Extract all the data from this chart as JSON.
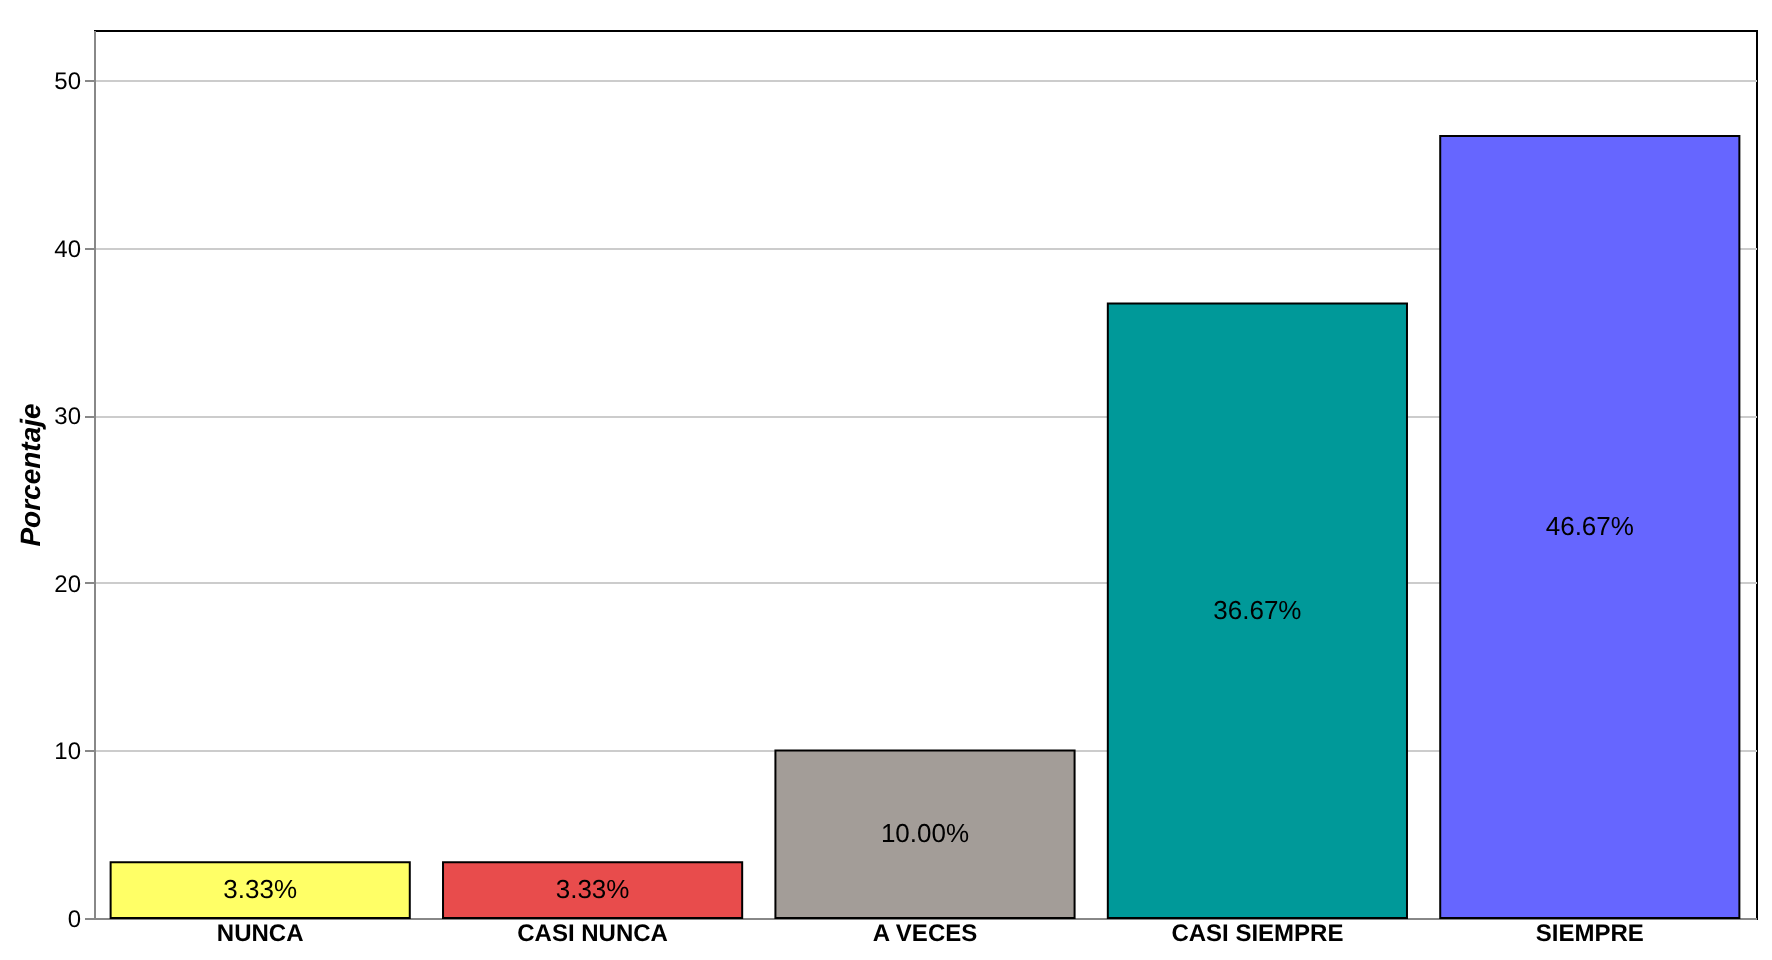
{
  "chart_data": {
    "type": "bar",
    "ylabel": "Porcentaje",
    "categories": [
      "NUNCA",
      "CASI NUNCA",
      "A VECES",
      "CASI SIEMPRE",
      "SIEMPRE"
    ],
    "values": [
      3.33,
      3.33,
      10.0,
      36.67,
      46.67
    ],
    "colors": [
      "#ffff66",
      "#e84c4c",
      "#a39d98",
      "#009999",
      "#6666ff"
    ],
    "value_labels": [
      "3.33%",
      "3.33%",
      "10.00%",
      "36.67%",
      "46.67%"
    ],
    "ylim": [
      0,
      53
    ],
    "yticks": [
      0,
      10,
      20,
      30,
      40,
      50
    ],
    "grid": "y"
  }
}
